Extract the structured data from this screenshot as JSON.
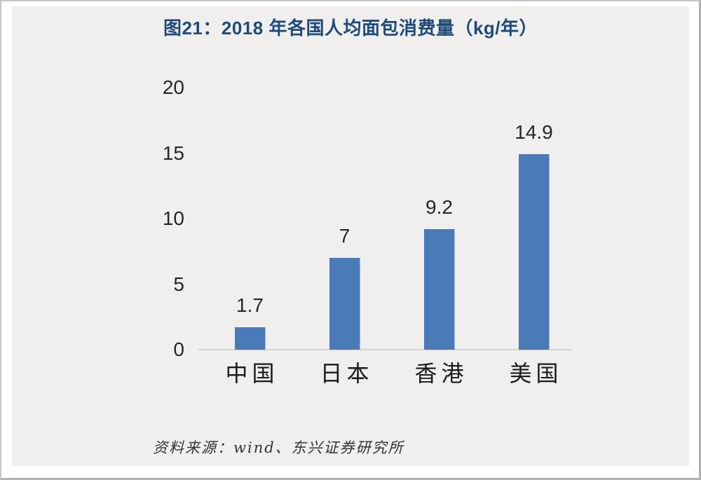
{
  "figure": {
    "title": "图21：2018 年各国人均面包消费量（kg/年）",
    "source": "资料来源：wind、东兴证券研究所"
  },
  "chart_data": {
    "type": "bar",
    "title": "图21：2018 年各国人均面包消费量（kg/年）",
    "categories": [
      "中国",
      "日本",
      "香港",
      "美国"
    ],
    "values": [
      1.7,
      7,
      9.2,
      14.9
    ],
    "data_labels": [
      "1.7",
      "7",
      "9.2",
      "14.9"
    ],
    "xlabel": "",
    "ylabel": "",
    "ylim": [
      0,
      20
    ],
    "yticks": [
      0,
      5,
      10,
      15,
      20
    ],
    "grid": false,
    "legend_position": "none",
    "bar_color": "#4a7ab8",
    "label_color": "#262626",
    "title_color": "#1e4a7a",
    "axis_line_color": "#d4d3d1",
    "panel_background": "#f0efed",
    "source_note": "资料来源：wind、东兴证券研究所"
  }
}
